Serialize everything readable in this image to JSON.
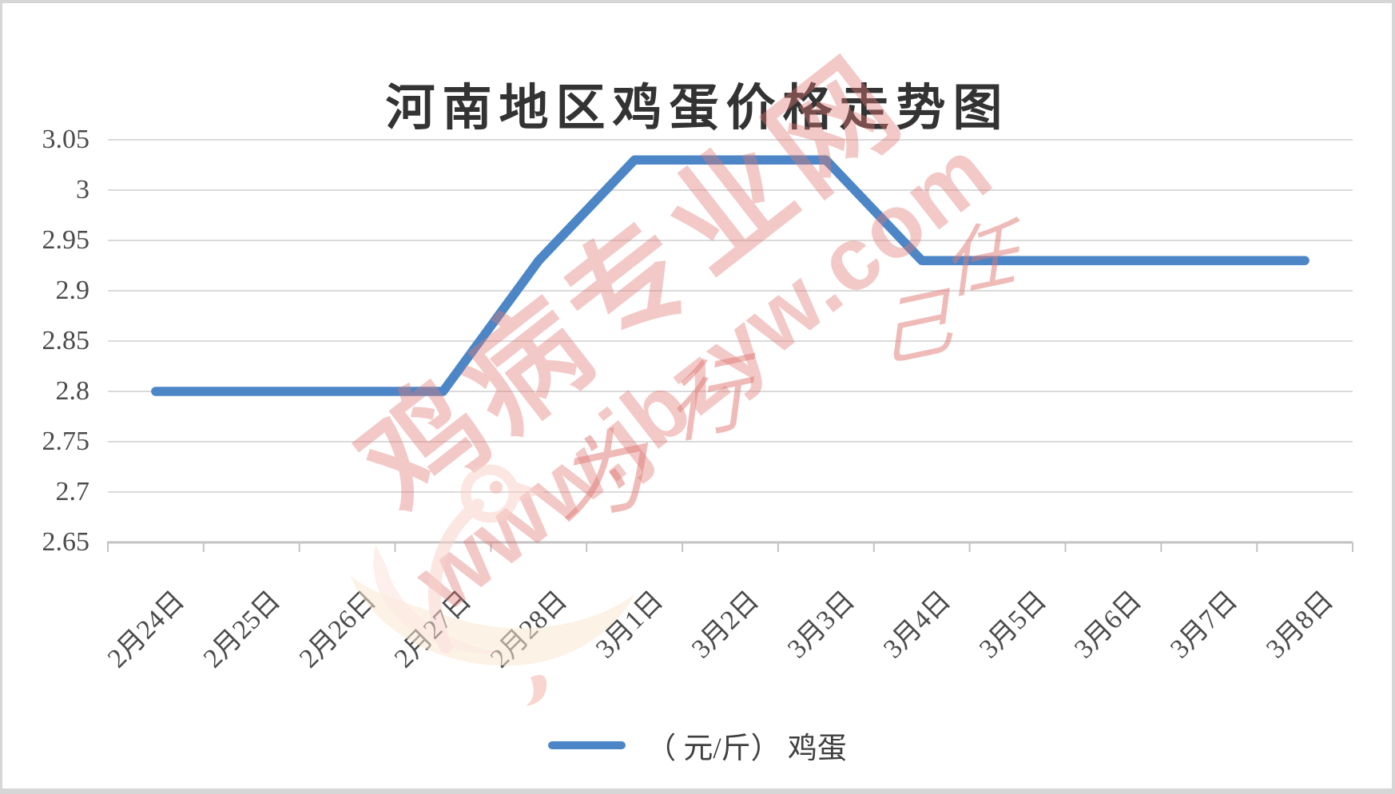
{
  "chart_data": {
    "type": "line",
    "title": "河南地区鸡蛋价格走势图",
    "categories": [
      "2月24日",
      "2月25日",
      "2月26日",
      "2月27日",
      "2月28日",
      "3月1日",
      "3月2日",
      "3月3日",
      "3月4日",
      "3月5日",
      "3月6日",
      "3月7日",
      "3月8日"
    ],
    "series": [
      {
        "name": "（ 元/斤） 鸡蛋",
        "values": [
          2.8,
          2.8,
          2.8,
          2.8,
          2.93,
          3.03,
          3.03,
          3.03,
          2.93,
          2.93,
          2.93,
          2.93,
          2.93
        ]
      }
    ],
    "ylim": [
      2.65,
      3.05
    ],
    "ytick_step": 0.05,
    "ytick_labels": [
      "2.65",
      "2.7",
      "2.75",
      "2.8",
      "2.85",
      "2.9",
      "2.95",
      "3",
      "3.05"
    ],
    "xlabel": "",
    "ylabel": "",
    "grid": "horizontal",
    "legend_position": "bottom",
    "line_color": "#4C86C6",
    "gridline_color": "#DADADA",
    "axis_line_color": "#C3C3C3",
    "title_color": "#333333",
    "tick_label_color": "#4B4B4B"
  },
  "watermark": {
    "main_text": "鸡病专业网",
    "url_text": "www.jbzyw.com",
    "script_glyphs": [
      "为",
      "行",
      "己",
      "任"
    ],
    "color": "#E07A74",
    "logo": "chicken-swoosh-logo"
  }
}
